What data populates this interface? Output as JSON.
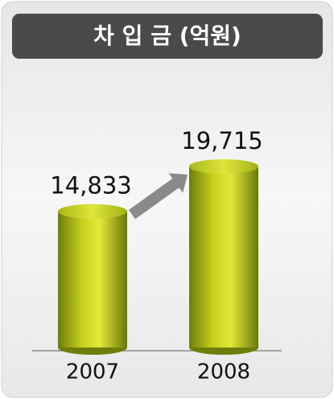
{
  "chart_data": {
    "type": "bar",
    "title": "차 입 금 (억원)",
    "categories": [
      "2007",
      "2008"
    ],
    "values": [
      14833,
      19715
    ],
    "value_labels": [
      "14,833",
      "19,715"
    ],
    "color": "#c8d21e"
  }
}
